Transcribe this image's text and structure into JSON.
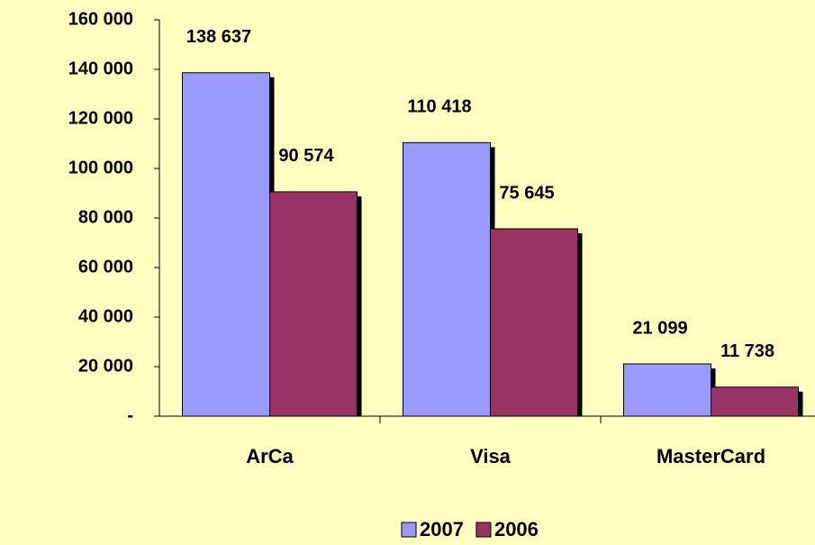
{
  "chart_data": {
    "type": "bar",
    "categories": [
      "ArCa",
      "Visa",
      "MasterCard"
    ],
    "series": [
      {
        "name": "2007",
        "color": "#9999ff",
        "values": [
          138637,
          110418,
          21099
        ],
        "value_labels": [
          "138 637",
          "110 418",
          "21 099"
        ]
      },
      {
        "name": "2006",
        "color": "#993366",
        "values": [
          90574,
          75645,
          11738
        ],
        "value_labels": [
          "90 574",
          "75 645",
          "11 738"
        ]
      }
    ],
    "ylim": [
      0,
      160000
    ],
    "yticks": [
      {
        "value": 0,
        "label": "-"
      },
      {
        "value": 20000,
        "label": "20 000"
      },
      {
        "value": 40000,
        "label": "40 000"
      },
      {
        "value": 60000,
        "label": "60 000"
      },
      {
        "value": 80000,
        "label": "80 000"
      },
      {
        "value": 100000,
        "label": "100 000"
      },
      {
        "value": 120000,
        "label": "120 000"
      },
      {
        "value": 140000,
        "label": "140 000"
      },
      {
        "value": 160000,
        "label": "160 000"
      }
    ],
    "legend": "bottom"
  }
}
